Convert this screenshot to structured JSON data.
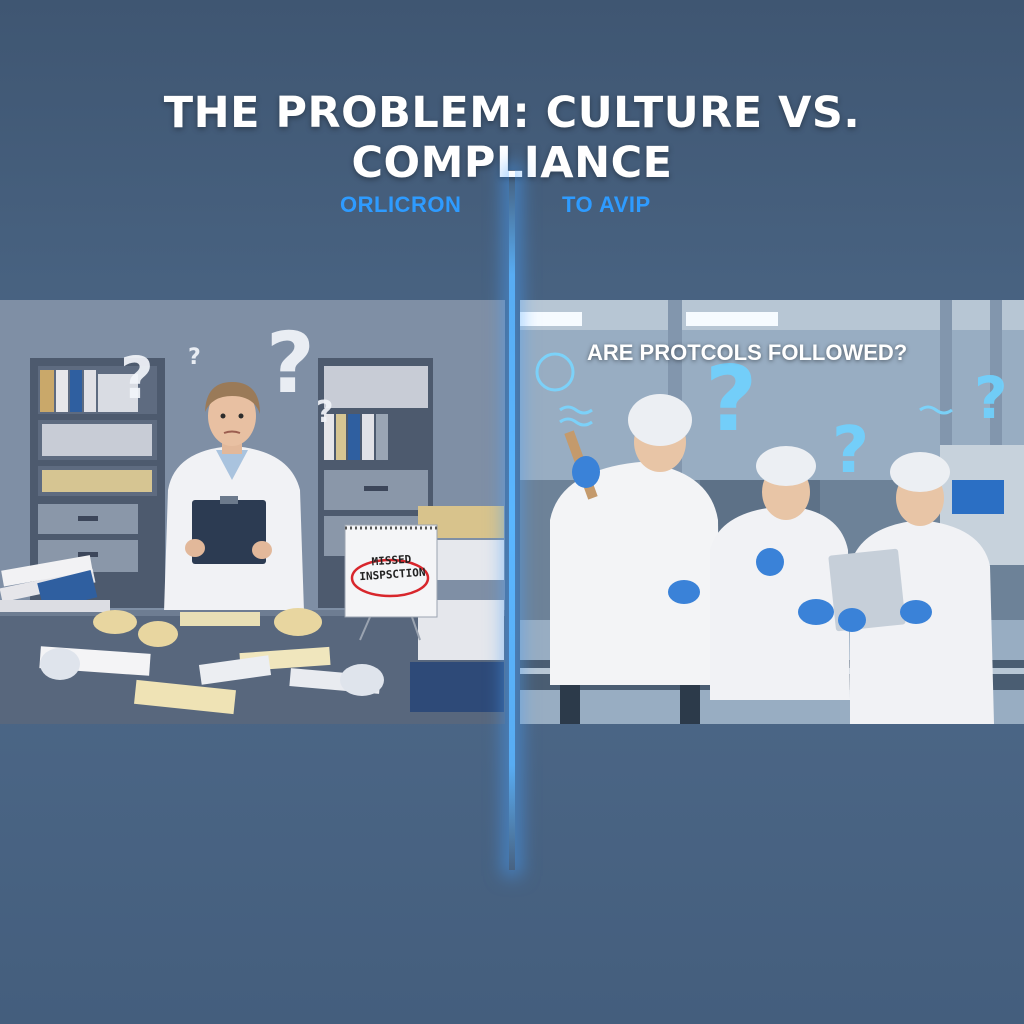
{
  "title": "THE PROBLEM: CULTURE VS. COMPLIANCE",
  "labels": {
    "left": "ORLICRON",
    "right": "TO AVIP"
  },
  "right_panel": {
    "caption": "ARE PROTCOLS FOLLOWED?"
  },
  "left_panel": {
    "note_line1": "MISSED",
    "note_line2": "INSPSCTION"
  },
  "colors": {
    "accent": "#2e9bff",
    "glow": "#5ab6ff",
    "title": "#ffffff"
  }
}
